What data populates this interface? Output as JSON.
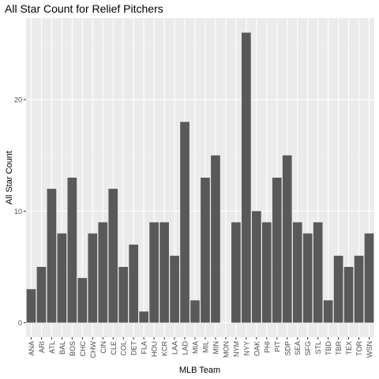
{
  "chart_data": {
    "type": "bar",
    "title": "All Star Count for Relief Pitchers",
    "xlabel": "MLB Team",
    "ylabel": "All Star Count",
    "categories": [
      "ANA",
      "ARI",
      "ATL",
      "BAL",
      "BOS",
      "CHC",
      "CHW",
      "CIN",
      "CLE",
      "COL",
      "DET",
      "FLA",
      "HOU",
      "KCR",
      "LAA",
      "LAD",
      "MIA",
      "MIL",
      "MIN",
      "MON",
      "NYM",
      "NYY",
      "OAK",
      "PHI",
      "PIT",
      "SDP",
      "SEA",
      "SFG",
      "STL",
      "TBD",
      "TBR",
      "TEX",
      "TOR",
      "WSN"
    ],
    "values": [
      3,
      5,
      12,
      8,
      13,
      4,
      8,
      9,
      12,
      5,
      7,
      1,
      9,
      9,
      6,
      18,
      2,
      13,
      15,
      0,
      9,
      26,
      10,
      9,
      13,
      15,
      9,
      8,
      9,
      2,
      6,
      5,
      6,
      8
    ],
    "yticks": [
      0,
      10,
      20
    ],
    "ylim": [
      -1.3,
      27.3
    ],
    "grid": true,
    "colors": {
      "panel": "#ebebeb",
      "gridMajor": "#ffffff",
      "gridMinor": "#f5f5f5",
      "bar": "#595959",
      "axisText": "#4d4d4d"
    }
  }
}
